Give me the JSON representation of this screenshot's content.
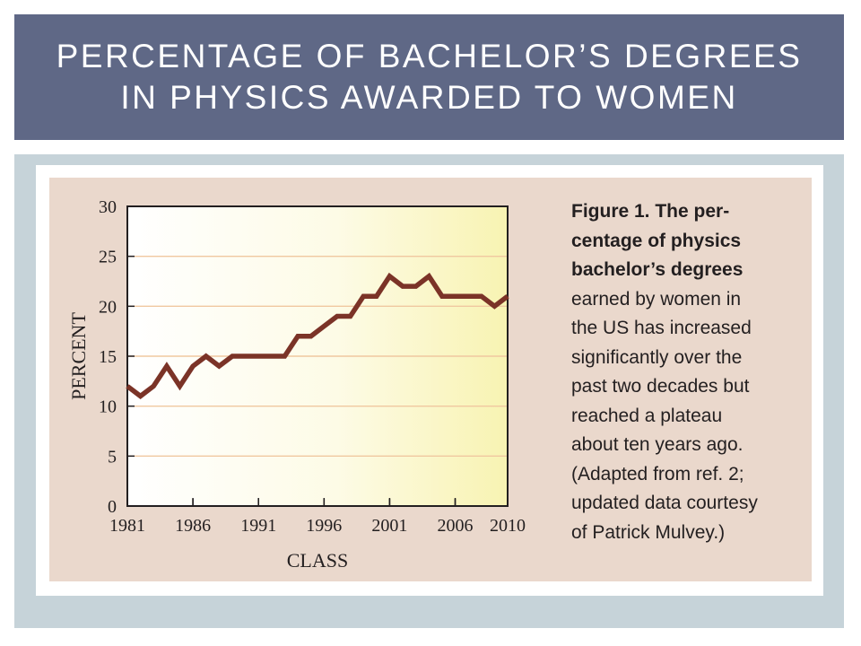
{
  "slide": {
    "title_line1": "PERCENTAGE OF BACHELOR’S DEGREES",
    "title_line2": "IN PHYSICS AWARDED TO WOMEN"
  },
  "caption": {
    "bold_lines": [
      "Figure 1. The per-",
      "centage of physics",
      "bachelor’s degrees"
    ],
    "lines": [
      "earned by women in",
      "the US has increased",
      "significantly over the",
      "past two decades but",
      "reached a plateau",
      "about ten years ago.",
      "(Adapted from ref. 2;",
      "updated data courtesy",
      "of Patrick Mulvey.)"
    ]
  },
  "colors": {
    "title_band": "#5f6886",
    "line": "#7b3327",
    "panel": "#ead8cc"
  },
  "chart_data": {
    "type": "line",
    "title": "",
    "xlabel": "CLASS",
    "ylabel": "PERCENT",
    "xlim": [
      1981,
      2010
    ],
    "ylim": [
      0,
      30
    ],
    "x_ticks": [
      1981,
      1986,
      1991,
      1996,
      2001,
      2006,
      2010
    ],
    "y_ticks": [
      0,
      5,
      10,
      15,
      20,
      25,
      30
    ],
    "grid": true,
    "series": [
      {
        "x": [
          1981,
          1982,
          1983,
          1984,
          1985,
          1986,
          1987,
          1988,
          1989,
          1990,
          1991,
          1992,
          1993,
          1994,
          1995,
          1996,
          1997,
          1998,
          1999,
          2000,
          2001,
          2002,
          2003,
          2004,
          2005,
          2006,
          2007,
          2008,
          2009,
          2010
        ],
        "values": [
          12,
          11,
          12,
          14,
          12,
          14,
          15,
          14,
          15,
          15,
          15,
          15,
          15,
          17,
          17,
          18,
          19,
          19,
          21,
          21,
          23,
          22,
          22,
          23,
          21,
          21,
          21,
          21,
          20,
          21
        ]
      }
    ]
  }
}
